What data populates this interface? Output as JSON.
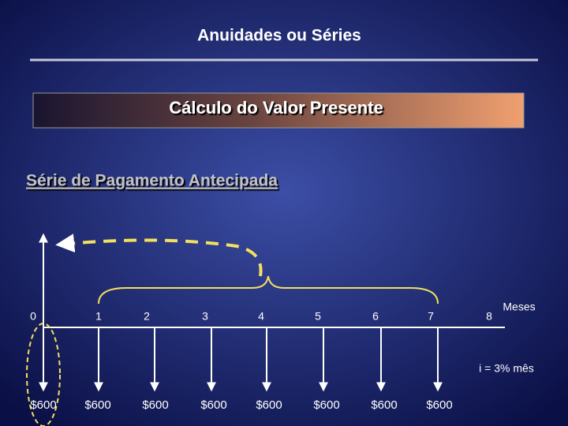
{
  "header": {
    "title": "Anuidades ou Séries"
  },
  "banner": {
    "text": "Cálculo do Valor Presente"
  },
  "section": {
    "heading": "Série de Pagamento Antecipada"
  },
  "timeline": {
    "periods": [
      0,
      1,
      2,
      3,
      4,
      5,
      6,
      7,
      8
    ],
    "unit": "Meses",
    "rate": "i = 3% mês",
    "payments": [
      "$600",
      "$600",
      "$600",
      "$600",
      "$600",
      "$600",
      "$600",
      "$600"
    ]
  }
}
